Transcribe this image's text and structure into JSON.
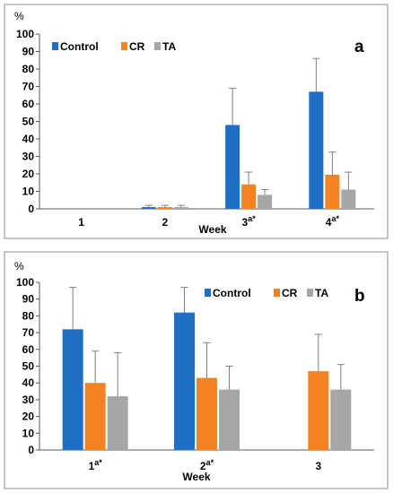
{
  "colors": {
    "Control": "#1f6fc6",
    "CR": "#f58220",
    "TA": "#a6a6a6",
    "error_bar": "#7f7f7f",
    "frame": "#8c8c8c"
  },
  "chart_data": [
    {
      "type": "bar",
      "panel_label": "a",
      "ylabel": "%",
      "xlabel": "Week",
      "ylim": [
        0,
        100
      ],
      "yticks": [
        0,
        10,
        20,
        30,
        40,
        50,
        60,
        70,
        80,
        90,
        100
      ],
      "categories": [
        {
          "label": "1",
          "sup": ""
        },
        {
          "label": "2",
          "sup": ""
        },
        {
          "label": "3",
          "sup": "a*"
        },
        {
          "label": "4",
          "sup": "a*"
        }
      ],
      "legend": {
        "position": "top-left",
        "entries": [
          "Control",
          "CR",
          "TA"
        ]
      },
      "series": [
        {
          "name": "Control",
          "values": [
            0,
            1,
            48,
            67
          ],
          "errors": [
            0,
            1,
            21,
            19
          ]
        },
        {
          "name": "CR",
          "values": [
            0,
            1,
            14,
            19.5
          ],
          "errors": [
            0,
            1,
            7,
            13
          ]
        },
        {
          "name": "TA",
          "values": [
            0,
            1,
            8,
            11
          ],
          "errors": [
            0,
            1,
            3,
            10
          ]
        }
      ]
    },
    {
      "type": "bar",
      "panel_label": "b",
      "ylabel": "%",
      "xlabel": "Week",
      "ylim": [
        0,
        100
      ],
      "yticks": [
        0,
        10,
        20,
        30,
        40,
        50,
        60,
        70,
        80,
        90,
        100
      ],
      "categories": [
        {
          "label": "1",
          "sup": "a*"
        },
        {
          "label": "2",
          "sup": "a*"
        },
        {
          "label": "3",
          "sup": ""
        }
      ],
      "legend": {
        "position": "top-center",
        "entries": [
          "Control",
          "CR",
          "TA"
        ]
      },
      "series": [
        {
          "name": "Control",
          "values": [
            72,
            82,
            null
          ],
          "errors": [
            25,
            15,
            null
          ]
        },
        {
          "name": "CR",
          "values": [
            40,
            43,
            47
          ],
          "errors": [
            19,
            21,
            22
          ]
        },
        {
          "name": "TA",
          "values": [
            32,
            36,
            36
          ],
          "errors": [
            26,
            14,
            15
          ]
        }
      ]
    }
  ]
}
